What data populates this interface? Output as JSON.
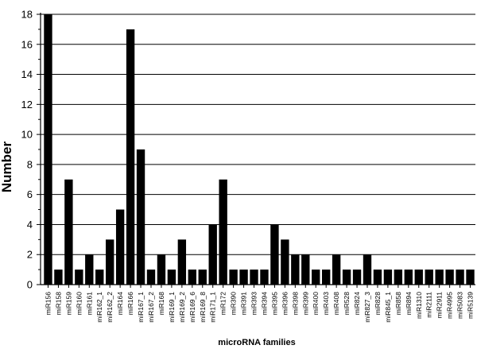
{
  "chart_data": {
    "type": "bar",
    "title": "",
    "xlabel": "microRNA families",
    "ylabel": "Number",
    "ylim": [
      0,
      18
    ],
    "yticks": [
      0,
      2,
      4,
      6,
      8,
      10,
      12,
      14,
      16,
      18
    ],
    "grid": true,
    "bar_color": "#000000",
    "categories": [
      "miR156",
      "miR158",
      "miR159",
      "miR160",
      "miR161",
      "miR162_1",
      "miR162_2",
      "miR164",
      "miR166",
      "miR167_1",
      "miR167_2",
      "miR168",
      "miR169_1",
      "miR169_2",
      "miR169_6",
      "miR169_8",
      "miR171_1",
      "miR172",
      "miR390",
      "miR391",
      "miR393",
      "miR394",
      "miR395",
      "miR396",
      "miR398",
      "miR399",
      "miR400",
      "miR403",
      "miR408",
      "miR528",
      "miR824",
      "miR827_3",
      "miR828",
      "miR845_1",
      "miR858",
      "miR894",
      "miR1310",
      "miR2111",
      "miR2911",
      "miR4995",
      "miR5083",
      "miR5139"
    ],
    "values": [
      18,
      1,
      7,
      1,
      2,
      1,
      3,
      5,
      17,
      9,
      1,
      2,
      1,
      3,
      1,
      1,
      4,
      7,
      1,
      1,
      1,
      1,
      4,
      3,
      2,
      2,
      1,
      1,
      2,
      1,
      1,
      2,
      1,
      1,
      1,
      1,
      1,
      1,
      1,
      1,
      1,
      1
    ]
  }
}
